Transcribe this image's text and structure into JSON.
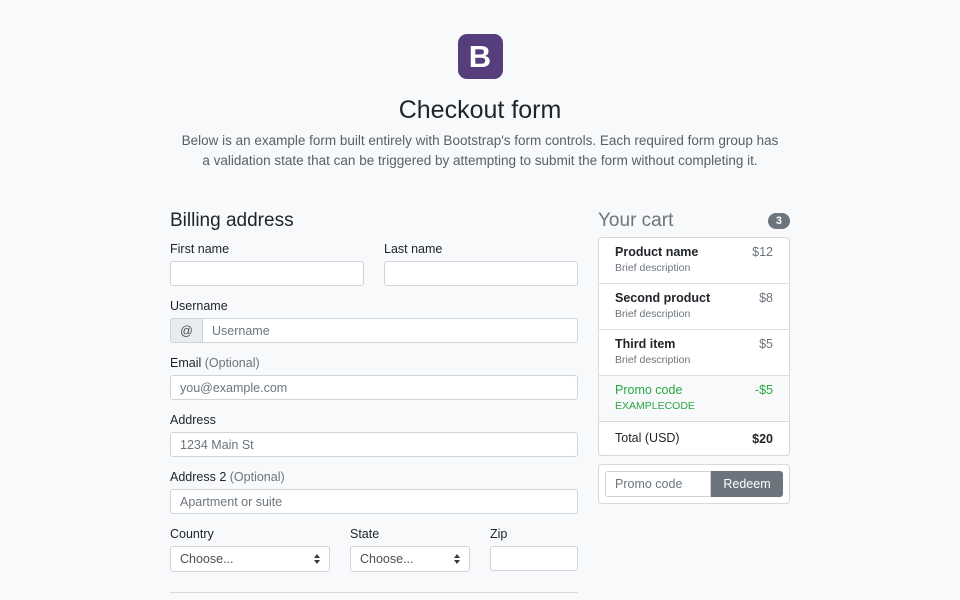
{
  "page": {
    "bg": "#f8f9fa",
    "brand_purple": "#563d7c",
    "secondary_gray": "#6c757d",
    "promo_green": "#28a745"
  },
  "header": {
    "logo_letter": "B",
    "title": "Checkout form",
    "lead": "Below is an example form built entirely with Bootstrap's form controls. Each required form group has a validation state that can be triggered by attempting to submit the form without completing it."
  },
  "billing": {
    "heading": "Billing address",
    "fields": {
      "first_name": {
        "label": "First name",
        "value": ""
      },
      "last_name": {
        "label": "Last name",
        "value": ""
      },
      "username": {
        "label": "Username",
        "prefix": "@",
        "placeholder": "Username",
        "value": ""
      },
      "email": {
        "label": "Email",
        "optional": "(Optional)",
        "placeholder": "you@example.com",
        "value": ""
      },
      "address": {
        "label": "Address",
        "placeholder": "1234 Main St",
        "value": ""
      },
      "address2": {
        "label": "Address 2",
        "optional": "(Optional)",
        "placeholder": "Apartment or suite",
        "value": ""
      },
      "country": {
        "label": "Country",
        "selected": "Choose..."
      },
      "state": {
        "label": "State",
        "selected": "Choose..."
      },
      "zip": {
        "label": "Zip",
        "value": ""
      }
    }
  },
  "cart": {
    "heading": "Your cart",
    "badge_count": "3",
    "items": [
      {
        "name": "Product name",
        "desc": "Brief description",
        "price": "$12"
      },
      {
        "name": "Second product",
        "desc": "Brief description",
        "price": "$8"
      },
      {
        "name": "Third item",
        "desc": "Brief description",
        "price": "$5"
      },
      {
        "name": "Promo code",
        "desc": "EXAMPLECODE",
        "price": "-$5"
      }
    ],
    "total": {
      "label": "Total (USD)",
      "value": "$20"
    },
    "promo_form": {
      "placeholder": "Promo code",
      "button_label": "Redeem"
    }
  }
}
